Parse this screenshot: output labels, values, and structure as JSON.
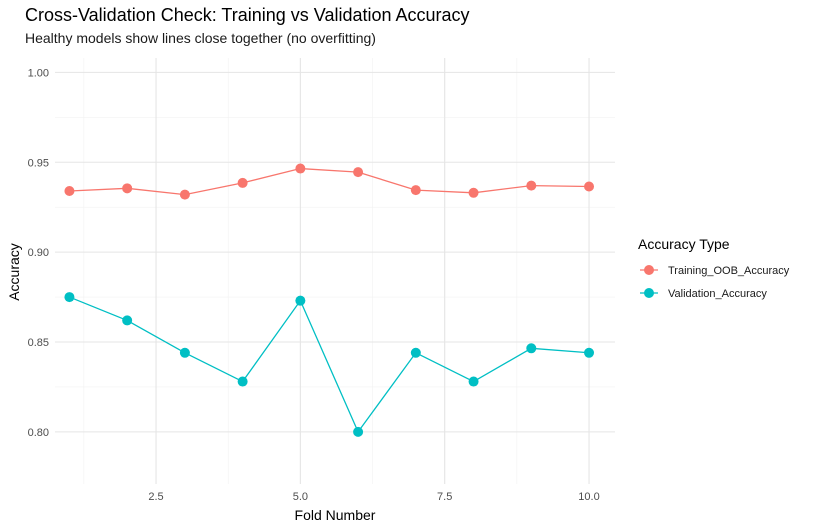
{
  "chart_data": {
    "type": "line",
    "title": "Cross-Validation Check: Training vs Validation Accuracy",
    "subtitle": "Healthy models show lines close together (no overfitting)",
    "xlabel": "Fold Number",
    "ylabel": "Accuracy",
    "x": [
      1,
      2,
      3,
      4,
      5,
      6,
      7,
      8,
      9,
      10
    ],
    "xlim": [
      0.75,
      10.45
    ],
    "ylim": [
      0.771,
      1.008
    ],
    "x_ticks": [
      2.5,
      5.0,
      7.5,
      10.0
    ],
    "x_tick_labels": [
      "2.5",
      "5.0",
      "7.5",
      "10.0"
    ],
    "y_ticks": [
      0.8,
      0.85,
      0.9,
      0.95,
      1.0
    ],
    "y_tick_labels": [
      "0.80",
      "0.85",
      "0.90",
      "0.95",
      "1.00"
    ],
    "grid": true,
    "legend": {
      "title": "Accuracy Type",
      "position": "right"
    },
    "series": [
      {
        "name": "Training_OOB_Accuracy",
        "color": "#F8766D",
        "values": [
          0.934,
          0.9355,
          0.932,
          0.9385,
          0.9465,
          0.9445,
          0.9345,
          0.933,
          0.937,
          0.9365
        ]
      },
      {
        "name": "Validation_Accuracy",
        "color": "#00BFC4",
        "values": [
          0.875,
          0.862,
          0.844,
          0.828,
          0.873,
          0.8,
          0.844,
          0.828,
          0.8465,
          0.844
        ]
      }
    ]
  }
}
